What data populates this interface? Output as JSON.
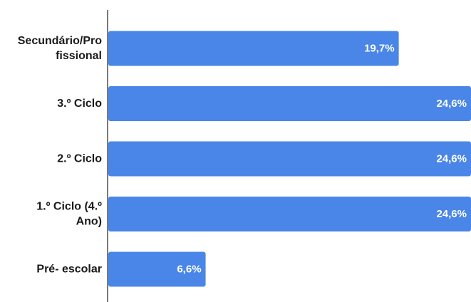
{
  "chart_data": {
    "type": "bar",
    "orientation": "horizontal",
    "categories": [
      [
        "Secundário/Pro",
        "fissional"
      ],
      [
        "3.º Ciclo"
      ],
      [
        "2.º Ciclo"
      ],
      [
        "1.º Ciclo (4.º",
        "Ano)"
      ],
      [
        "Pré- escolar"
      ]
    ],
    "values": [
      19.7,
      24.6,
      24.6,
      24.6,
      6.6
    ],
    "value_labels": [
      "19,7%",
      "24,6%",
      "24,6%",
      "24,6%",
      "6,6%"
    ],
    "xlim": [
      0,
      24.6
    ],
    "grid": false,
    "colors": {
      "bar": "#4a86e8",
      "axis": "#333333",
      "category_text": "#1a1a1a",
      "value_text": "#ffffff"
    }
  }
}
